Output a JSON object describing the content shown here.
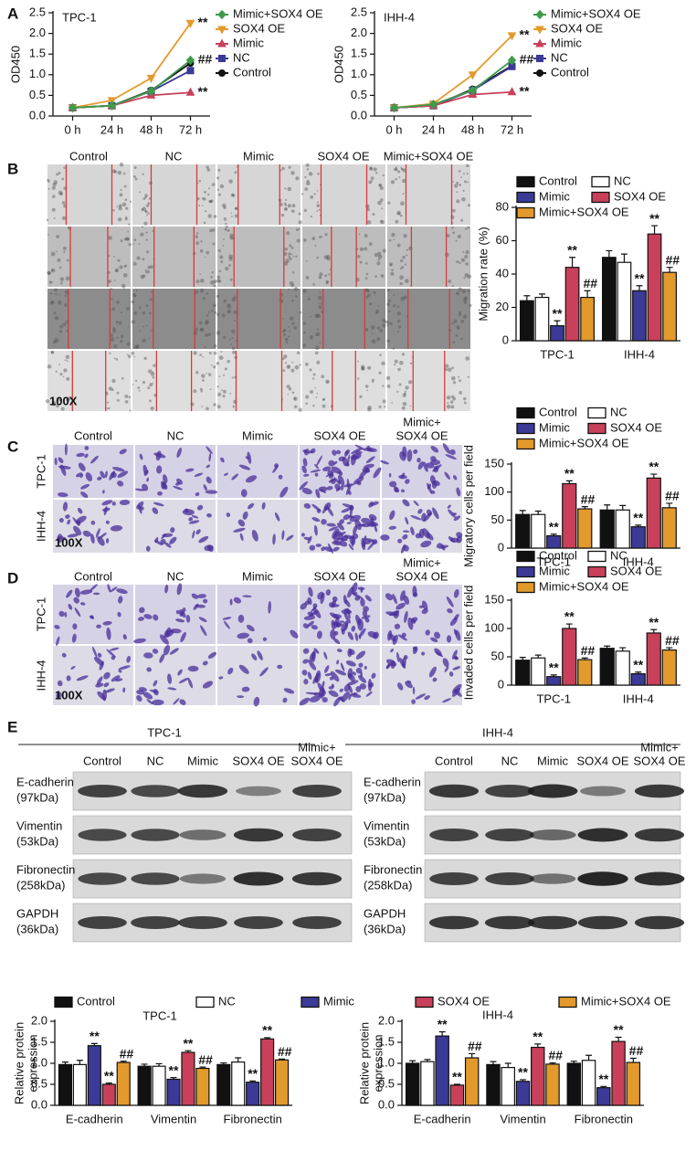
{
  "panel_letters": [
    "A",
    "B",
    "C",
    "D",
    "E"
  ],
  "scratch": {
    "columns": [
      "Control",
      "NC",
      "Mimic",
      "SOX4 OE",
      "Mimic+SOX4 OE"
    ],
    "magnification": "100X"
  },
  "migration": {
    "columns": [
      "Control",
      "NC",
      "Mimic",
      "SOX4 OE",
      [
        "Mimic+",
        "SOX4 OE"
      ]
    ],
    "rows": [
      "TPC-1",
      "IHH-4"
    ],
    "magnification": "100X"
  },
  "invasion": {
    "columns": [
      "Control",
      "NC",
      "Mimic",
      "SOX4 OE",
      [
        "Mimic+",
        "SOX4 OE"
      ]
    ],
    "rows": [
      "TPC-1",
      "IHH-4"
    ],
    "magnification": "100X"
  },
  "western": [
    {
      "title": "TPC-1",
      "columns": [
        "Control",
        "NC",
        "Mimic",
        "SOX4 OE",
        [
          "Mimic+",
          "SOX4 OE"
        ]
      ],
      "rows": [
        [
          "E-cadherin",
          "(97kDa)"
        ],
        [
          "Vimentin",
          "(53kDa)"
        ],
        [
          "Fibronectin",
          "(258kDa)"
        ],
        [
          "GAPDH",
          "(36kDa)"
        ]
      ]
    },
    {
      "title": "IHH-4",
      "columns": [
        "Control",
        "NC",
        "Mimic",
        "SOX4 OE",
        [
          "Mimic+",
          "SOX4 OE"
        ]
      ],
      "rows": [
        [
          "E-cadherin",
          "(97kDa)"
        ],
        [
          "Vimentin",
          "(53kDa)"
        ],
        [
          "Fibronectin",
          "(258kDa)"
        ],
        [
          "GAPDH",
          "(36kDa)"
        ]
      ]
    }
  ],
  "chart_data": [
    {
      "type": "line",
      "title": "TPC-1",
      "ylabel": "OD450",
      "categories": [
        "0 h",
        "24 h",
        "48 h",
        "72 h"
      ],
      "ylim": [
        0,
        2.5
      ],
      "yticks": [
        {
          "value": 0,
          "label": "0.0"
        },
        0.5,
        {
          "value": 1,
          "label": "1.0"
        },
        1.5,
        {
          "value": 2,
          "label": "2.0"
        },
        2.5
      ],
      "series": [
        {
          "name": "Mimic+SOX4 OE",
          "color": "#3f9b4a",
          "values": [
            0.2,
            0.25,
            0.6,
            1.35
          ],
          "labels": [
            null,
            null,
            null,
            "##"
          ]
        },
        {
          "name": "SOX4 OE",
          "color": "#e39a2c",
          "values": [
            0.2,
            0.38,
            0.92,
            2.25
          ],
          "labels": [
            null,
            null,
            null,
            "**"
          ]
        },
        {
          "name": "Mimic",
          "color": "#c8405a",
          "values": [
            0.2,
            0.25,
            0.5,
            0.57
          ],
          "labels": [
            null,
            null,
            null,
            "**"
          ]
        },
        {
          "name": "NC",
          "color": "#3b3a96",
          "values": [
            0.2,
            0.25,
            0.6,
            1.1
          ]
        },
        {
          "name": "Control",
          "color": "#111111",
          "values": [
            0.2,
            0.25,
            0.62,
            1.28
          ]
        }
      ]
    },
    {
      "type": "line",
      "title": "IHH-4",
      "ylabel": "OD450",
      "categories": [
        "0 h",
        "24 h",
        "48 h",
        "72 h"
      ],
      "ylim": [
        0,
        2.5
      ],
      "yticks": [
        {
          "value": 0,
          "label": "0.0"
        },
        0.5,
        {
          "value": 1,
          "label": "1.0"
        },
        1.5,
        {
          "value": 2,
          "label": "2.0"
        },
        2.5
      ],
      "series": [
        {
          "name": "Mimic+SOX4 OE",
          "color": "#3f9b4a",
          "values": [
            0.2,
            0.28,
            0.62,
            1.35
          ],
          "labels": [
            null,
            null,
            null,
            "##"
          ]
        },
        {
          "name": "SOX4 OE",
          "color": "#e39a2c",
          "values": [
            0.2,
            0.3,
            1.0,
            1.95
          ],
          "labels": [
            null,
            null,
            null,
            "**"
          ]
        },
        {
          "name": "Mimic",
          "color": "#c8405a",
          "values": [
            0.2,
            0.25,
            0.52,
            0.58
          ],
          "labels": [
            null,
            null,
            null,
            "**"
          ]
        },
        {
          "name": "NC",
          "color": "#3b3a96",
          "values": [
            0.2,
            0.25,
            0.62,
            1.2
          ]
        },
        {
          "name": "Control",
          "color": "#111111",
          "values": [
            0.2,
            0.25,
            0.65,
            1.22
          ]
        }
      ]
    },
    {
      "type": "bar",
      "ylabel": "Migration rate (%)",
      "categories": [
        "TPC-1",
        "IHH-4"
      ],
      "ylim": [
        0,
        80
      ],
      "yticks": [
        0,
        20,
        40,
        60,
        80
      ],
      "series": [
        {
          "name": "Control",
          "color": "#111111",
          "values": [
            24,
            50
          ],
          "errors": [
            3,
            4
          ]
        },
        {
          "name": "NC",
          "color": "#ffffff",
          "values": [
            26,
            47
          ],
          "errors": [
            2,
            5
          ]
        },
        {
          "name": "Mimic",
          "color": "#3b3a96",
          "values": [
            9,
            30
          ],
          "errors": [
            3,
            3
          ],
          "labels": [
            "**",
            "**"
          ]
        },
        {
          "name": "SOX4 OE",
          "color": "#c8405a",
          "values": [
            44,
            64
          ],
          "errors": [
            6,
            5
          ],
          "labels": [
            "**",
            "**"
          ]
        },
        {
          "name": "Mimic+SOX4 OE",
          "color": "#e39a2c",
          "values": [
            26,
            41
          ],
          "errors": [
            4,
            3
          ],
          "labels": [
            "##",
            "##"
          ]
        }
      ]
    },
    {
      "type": "bar",
      "ylabel": "Migratory cells per field",
      "categories": [
        "TPC-1",
        "IHH-4"
      ],
      "ylim": [
        0,
        150
      ],
      "yticks": [
        0,
        50,
        100,
        150
      ],
      "series": [
        {
          "name": "Control",
          "color": "#111111",
          "values": [
            60,
            68
          ],
          "errors": [
            7,
            9
          ]
        },
        {
          "name": "NC",
          "color": "#ffffff",
          "values": [
            60,
            68
          ],
          "errors": [
            6,
            8
          ]
        },
        {
          "name": "Mimic",
          "color": "#3b3a96",
          "values": [
            22,
            38
          ],
          "errors": [
            3,
            3
          ],
          "labels": [
            "**",
            "**"
          ]
        },
        {
          "name": "SOX4 OE",
          "color": "#c8405a",
          "values": [
            115,
            125
          ],
          "errors": [
            5,
            7
          ],
          "labels": [
            "**",
            "**"
          ]
        },
        {
          "name": "Mimic+SOX4 OE",
          "color": "#e39a2c",
          "values": [
            70,
            72
          ],
          "errors": [
            4,
            8
          ],
          "labels": [
            "##",
            "##"
          ]
        }
      ]
    },
    {
      "type": "bar",
      "ylabel": "Invaded cells per field",
      "categories": [
        "TPC-1",
        "IHH-4"
      ],
      "ylim": [
        0,
        150
      ],
      "yticks": [
        0,
        50,
        100,
        150
      ],
      "series": [
        {
          "name": "Control",
          "color": "#111111",
          "values": [
            44,
            65
          ],
          "errors": [
            5,
            4
          ]
        },
        {
          "name": "NC",
          "color": "#ffffff",
          "values": [
            48,
            60
          ],
          "errors": [
            5,
            6
          ]
        },
        {
          "name": "Mimic",
          "color": "#3b3a96",
          "values": [
            15,
            20
          ],
          "errors": [
            3,
            3
          ],
          "labels": [
            "**",
            "**"
          ]
        },
        {
          "name": "SOX4 OE",
          "color": "#c8405a",
          "values": [
            100,
            92
          ],
          "errors": [
            8,
            6
          ],
          "labels": [
            "**",
            "**"
          ]
        },
        {
          "name": "Mimic+SOX4 OE",
          "color": "#e39a2c",
          "values": [
            45,
            62
          ],
          "errors": [
            3,
            4
          ],
          "labels": [
            "##",
            "##"
          ]
        }
      ]
    },
    {
      "type": "bar",
      "title": "TPC-1",
      "ylabel": [
        "Relative protein",
        "expression"
      ],
      "categories": [
        "E-cadherin",
        "Vimentin",
        "Fibronectin"
      ],
      "ylim": [
        0,
        2
      ],
      "yticks": [
        {
          "value": 0,
          "label": "0.0"
        },
        0.5,
        {
          "value": 1,
          "label": "1.0"
        },
        1.5,
        {
          "value": 2,
          "label": "2.0"
        }
      ],
      "series": [
        {
          "name": "Control",
          "color": "#111111",
          "values": [
            0.97,
            0.93,
            0.97
          ],
          "errors": [
            0.06,
            0.05,
            0.04
          ]
        },
        {
          "name": "NC",
          "color": "#ffffff",
          "values": [
            0.97,
            0.93,
            1.03
          ],
          "errors": [
            0.1,
            0.06,
            0.1
          ]
        },
        {
          "name": "Mimic",
          "color": "#3b3a96",
          "values": [
            1.42,
            0.62,
            0.55
          ],
          "errors": [
            0.05,
            0.04,
            0.03
          ],
          "labels": [
            "**",
            "**",
            "**"
          ]
        },
        {
          "name": "SOX4 OE",
          "color": "#c8405a",
          "values": [
            0.5,
            1.26,
            1.58
          ],
          "errors": [
            0.03,
            0.04,
            0.03
          ],
          "labels": [
            "**",
            "**",
            "**"
          ]
        },
        {
          "name": "Mimic+SOX4 OE",
          "color": "#e39a2c",
          "values": [
            1.02,
            0.88,
            1.08
          ],
          "errors": [
            0.03,
            0.03,
            0.02
          ],
          "labels": [
            "##",
            "##",
            "##"
          ]
        }
      ]
    },
    {
      "type": "bar",
      "title": "IHH-4",
      "ylabel": [
        "Relative protein",
        "expression"
      ],
      "categories": [
        "E-cadherin",
        "Vimentin",
        "Fibronectin"
      ],
      "ylim": [
        0,
        2
      ],
      "yticks": [
        {
          "value": 0,
          "label": "0.0"
        },
        0.5,
        {
          "value": 1,
          "label": "1.0"
        },
        1.5,
        {
          "value": 2,
          "label": "2.0"
        }
      ],
      "series": [
        {
          "values": [
            1.0,
            0.97,
            1.0
          ],
          "errors": [
            0.06,
            0.07,
            0.05
          ]
        },
        {
          "values": [
            1.04,
            0.9,
            1.07
          ],
          "errors": [
            0.05,
            0.1,
            0.12
          ]
        },
        {
          "values": [
            1.65,
            0.57,
            0.42
          ],
          "errors": [
            0.1,
            0.04,
            0.03
          ],
          "labels": [
            "**",
            "**",
            "**"
          ]
        },
        {
          "values": [
            0.48,
            1.38,
            1.52
          ],
          "errors": [
            0.02,
            0.08,
            0.1
          ],
          "labels": [
            "**",
            "**",
            "**"
          ]
        },
        {
          "values": [
            1.13,
            0.98,
            1.02
          ],
          "errors": [
            0.1,
            0.03,
            0.1
          ],
          "labels": [
            "##",
            "##",
            "##"
          ]
        }
      ]
    }
  ]
}
